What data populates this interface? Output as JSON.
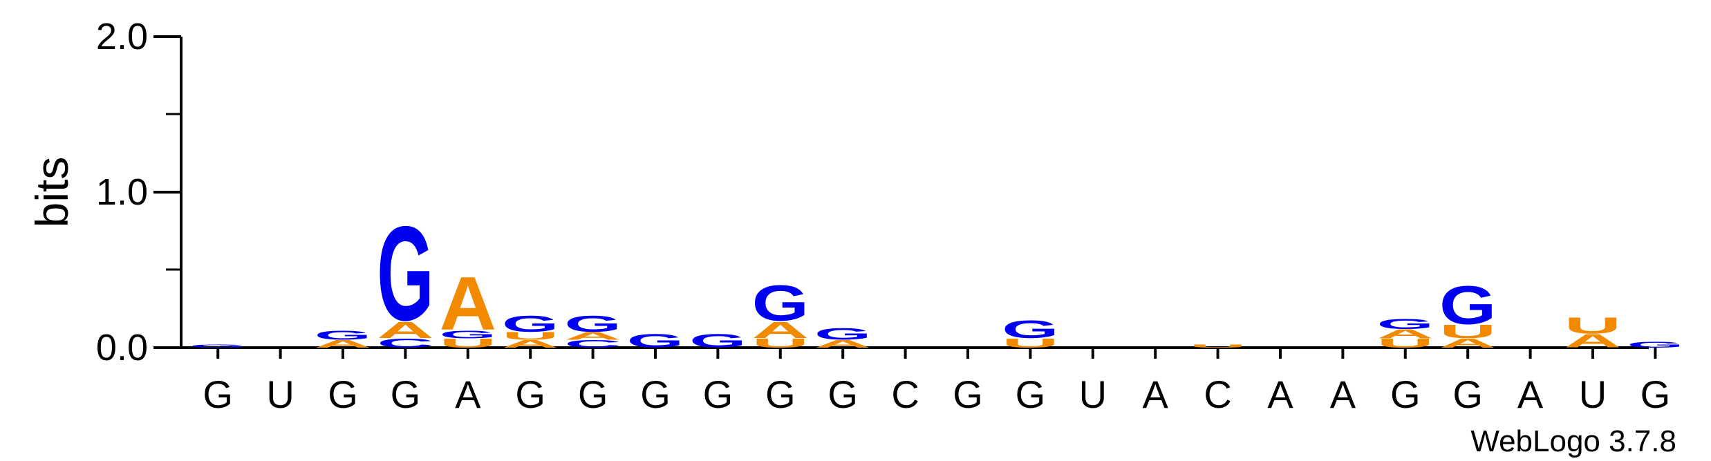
{
  "chart_data": {
    "type": "sequence_logo",
    "ylabel": "bits",
    "ylim": [
      0,
      2.0
    ],
    "yticks": [
      "0.0",
      "1.0",
      "2.0"
    ],
    "credit": "WebLogo 3.7.8",
    "alphabet_colors": {
      "A": "#f28a00",
      "U": "#f28a00",
      "G": "#0000f0",
      "C": "#0000f0"
    },
    "positions": [
      {
        "label": "G",
        "stack": [
          {
            "letter": "G",
            "bits": 0.02
          }
        ]
      },
      {
        "label": "U",
        "stack": []
      },
      {
        "label": "G",
        "stack": [
          {
            "letter": "A",
            "bits": 0.05
          },
          {
            "letter": "G",
            "bits": 0.06
          }
        ]
      },
      {
        "label": "G",
        "stack": [
          {
            "letter": "C",
            "bits": 0.06
          },
          {
            "letter": "A",
            "bits": 0.11
          },
          {
            "letter": "G",
            "bits": 0.64
          }
        ]
      },
      {
        "label": "A",
        "stack": [
          {
            "letter": "U",
            "bits": 0.06
          },
          {
            "letter": "G",
            "bits": 0.05
          },
          {
            "letter": "A",
            "bits": 0.36
          }
        ]
      },
      {
        "label": "G",
        "stack": [
          {
            "letter": "A",
            "bits": 0.05
          },
          {
            "letter": "U",
            "bits": 0.05
          },
          {
            "letter": "G",
            "bits": 0.11
          }
        ]
      },
      {
        "label": "G",
        "stack": [
          {
            "letter": "C",
            "bits": 0.05
          },
          {
            "letter": "A",
            "bits": 0.05
          },
          {
            "letter": "G",
            "bits": 0.11
          }
        ]
      },
      {
        "label": "G",
        "stack": [
          {
            "letter": "G",
            "bits": 0.09
          }
        ]
      },
      {
        "label": "G",
        "stack": [
          {
            "letter": "G",
            "bits": 0.09
          }
        ]
      },
      {
        "label": "G",
        "stack": [
          {
            "letter": "U",
            "bits": 0.06
          },
          {
            "letter": "A",
            "bits": 0.11
          },
          {
            "letter": "G",
            "bits": 0.24
          }
        ]
      },
      {
        "label": "G",
        "stack": [
          {
            "letter": "A",
            "bits": 0.05
          },
          {
            "letter": "G",
            "bits": 0.08
          }
        ]
      },
      {
        "label": "C",
        "stack": []
      },
      {
        "label": "G",
        "stack": []
      },
      {
        "label": "G",
        "stack": [
          {
            "letter": "U",
            "bits": 0.06
          },
          {
            "letter": "G",
            "bits": 0.12
          }
        ]
      },
      {
        "label": "U",
        "stack": []
      },
      {
        "label": "A",
        "stack": []
      },
      {
        "label": "C",
        "stack": [
          {
            "letter": "U",
            "bits": 0.02
          }
        ]
      },
      {
        "label": "A",
        "stack": []
      },
      {
        "label": "A",
        "stack": []
      },
      {
        "label": "G",
        "stack": [
          {
            "letter": "U",
            "bits": 0.06
          },
          {
            "letter": "A",
            "bits": 0.06
          },
          {
            "letter": "G",
            "bits": 0.07
          }
        ]
      },
      {
        "label": "G",
        "stack": [
          {
            "letter": "A",
            "bits": 0.06
          },
          {
            "letter": "U",
            "bits": 0.09
          },
          {
            "letter": "G",
            "bits": 0.26
          }
        ]
      },
      {
        "label": "A",
        "stack": []
      },
      {
        "label": "U",
        "stack": [
          {
            "letter": "A",
            "bits": 0.09
          },
          {
            "letter": "U",
            "bits": 0.11
          }
        ]
      },
      {
        "label": "G",
        "stack": [
          {
            "letter": "G",
            "bits": 0.04
          }
        ]
      }
    ]
  }
}
